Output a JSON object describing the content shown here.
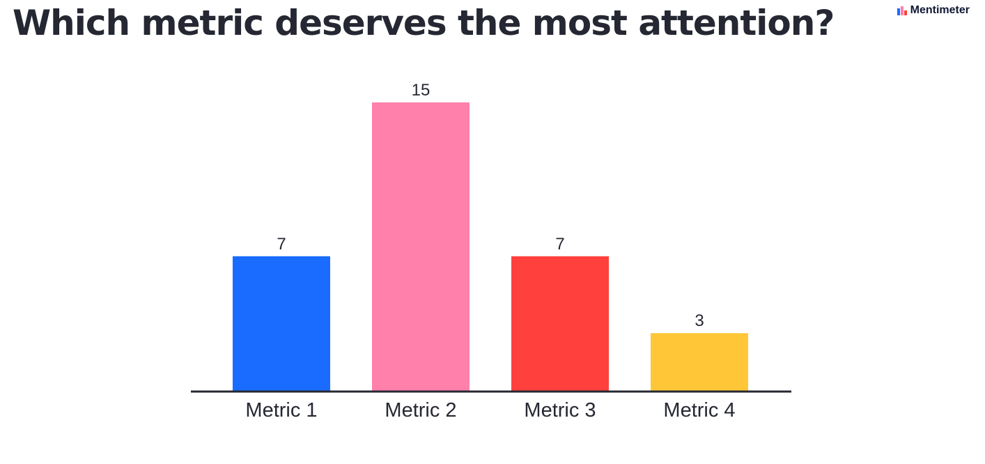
{
  "title": "Which metric deserves the most attention?",
  "brand": {
    "name": "Mentimeter",
    "icon": "mentimeter-logo-icon"
  },
  "chart_data": {
    "type": "bar",
    "title": "Which metric deserves the most attention?",
    "categories": [
      "Metric 1",
      "Metric 2",
      "Metric 3",
      "Metric 4"
    ],
    "values": [
      7,
      15,
      7,
      3
    ],
    "colors": [
      "#196cff",
      "#ff80ab",
      "#ff403d",
      "#ffc637"
    ],
    "ylim": [
      0,
      15
    ],
    "xlabel": "",
    "ylabel": "",
    "grid": false,
    "data_labels": true
  }
}
